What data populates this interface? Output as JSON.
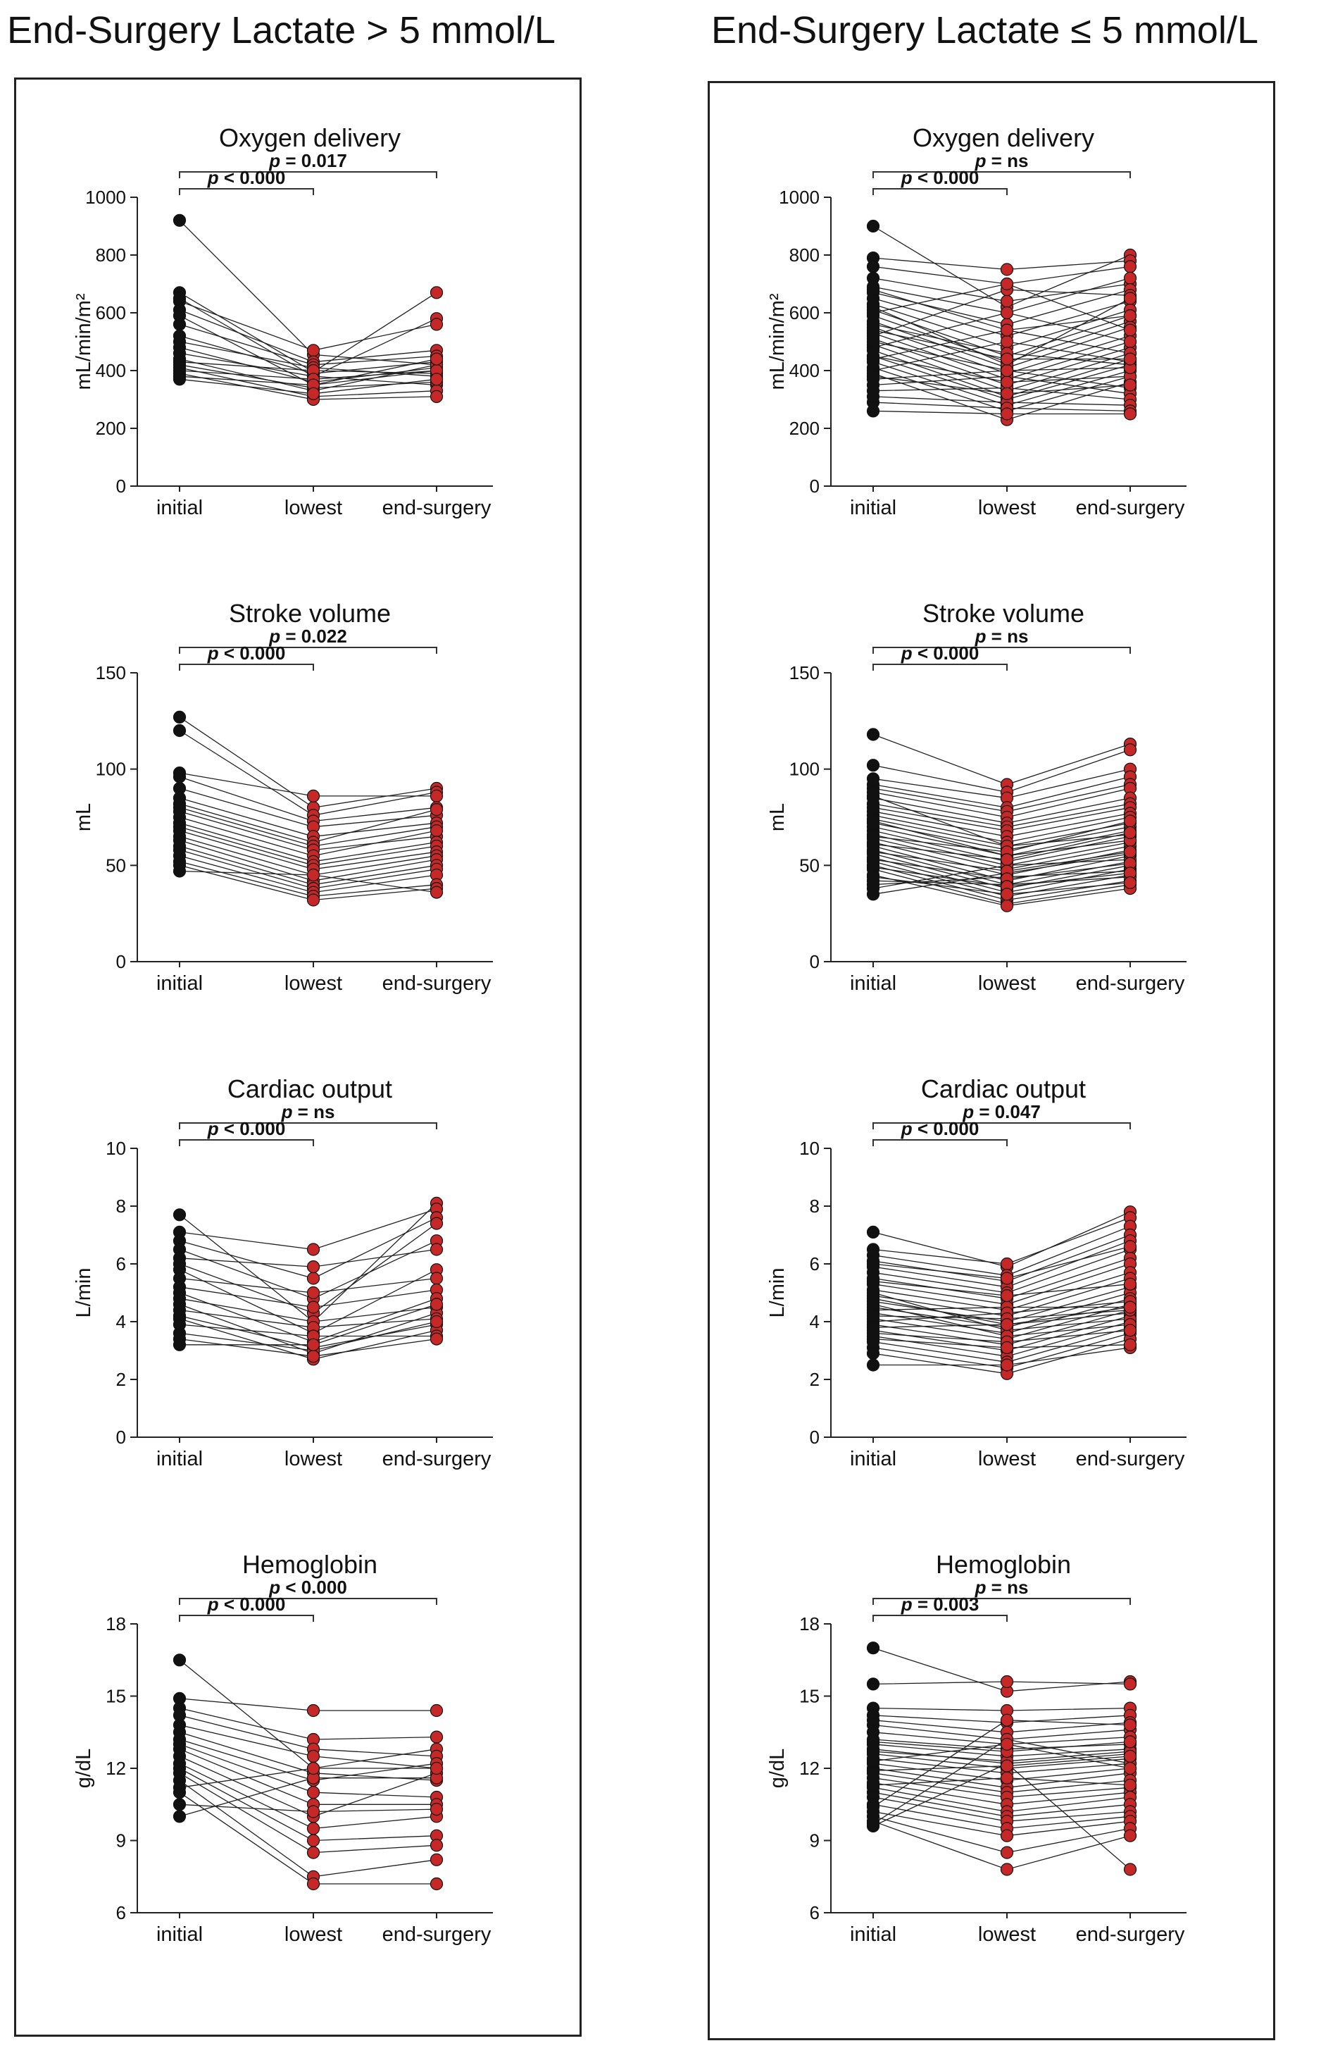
{
  "headers": {
    "left": "End-Surgery Lactate > 5 mmol/L",
    "right": "End-Surgery Lactate ≤ 5 mmol/L"
  },
  "colors": {
    "initial": "#111111",
    "later": "#c62828",
    "line": "#222222"
  },
  "chart_data": [
    {
      "type": "scatter",
      "group": "End-Surgery Lactate > 5 mmol/L",
      "title": "Oxygen delivery",
      "ylabel": "mL/min/m²",
      "categories": [
        "initial",
        "lowest",
        "end-surgery"
      ],
      "ylim": [
        0,
        1000
      ],
      "yticks": [
        0,
        200,
        400,
        600,
        800,
        1000
      ],
      "comparisons": [
        {
          "label": "p = 0.017",
          "p": "= 0.017",
          "from": 0,
          "to": 2
        },
        {
          "label": "p < 0.000",
          "p": "< 0.000",
          "from": 0,
          "to": 1
        }
      ],
      "series": [
        [
          920,
          455,
          420
        ],
        [
          670,
          395,
          670
        ],
        [
          650,
          380,
          580
        ],
        [
          640,
          470,
          560
        ],
        [
          610,
          430,
          470
        ],
        [
          590,
          350,
          400
        ],
        [
          560,
          420,
          450
        ],
        [
          520,
          390,
          430
        ],
        [
          500,
          410,
          380
        ],
        [
          480,
          360,
          410
        ],
        [
          460,
          380,
          350
        ],
        [
          440,
          330,
          420
        ],
        [
          430,
          400,
          390
        ],
        [
          420,
          340,
          360
        ],
        [
          410,
          310,
          330
        ],
        [
          400,
          370,
          400
        ],
        [
          390,
          300,
          310
        ],
        [
          380,
          350,
          440
        ],
        [
          370,
          320,
          370
        ]
      ]
    },
    {
      "type": "scatter",
      "group": "End-Surgery Lactate > 5 mmol/L",
      "title": "Stroke volume",
      "ylabel": "mL",
      "categories": [
        "initial",
        "lowest",
        "end-surgery"
      ],
      "ylim": [
        0,
        150
      ],
      "yticks": [
        0,
        50,
        100,
        150
      ],
      "comparisons": [
        {
          "label": "p = 0.022",
          "p": "= 0.022",
          "from": 0,
          "to": 2
        },
        {
          "label": "p < 0.000",
          "p": "< 0.000",
          "from": 0,
          "to": 1
        }
      ],
      "series": [
        [
          127,
          80,
          90
        ],
        [
          120,
          76,
          88
        ],
        [
          98,
          86,
          86
        ],
        [
          96,
          73,
          80
        ],
        [
          90,
          70,
          76
        ],
        [
          85,
          65,
          72
        ],
        [
          82,
          62,
          79
        ],
        [
          80,
          60,
          70
        ],
        [
          78,
          58,
          65
        ],
        [
          75,
          55,
          68
        ],
        [
          72,
          52,
          62
        ],
        [
          70,
          50,
          60
        ],
        [
          68,
          48,
          57
        ],
        [
          65,
          45,
          55
        ],
        [
          63,
          42,
          53
        ],
        [
          60,
          40,
          50
        ],
        [
          58,
          38,
          48
        ],
        [
          55,
          36,
          45
        ],
        [
          52,
          34,
          40
        ],
        [
          50,
          32,
          38
        ],
        [
          47,
          45,
          36
        ]
      ]
    },
    {
      "type": "scatter",
      "group": "End-Surgery Lactate > 5 mmol/L",
      "title": "Cardiac output",
      "ylabel": "L/min",
      "categories": [
        "initial",
        "lowest",
        "end-surgery"
      ],
      "ylim": [
        0,
        10
      ],
      "yticks": [
        0,
        2,
        4,
        6,
        8,
        10
      ],
      "comparisons": [
        {
          "label": "p = ns",
          "p": "= ns",
          "from": 0,
          "to": 2
        },
        {
          "label": "p < 0.000",
          "p": "< 0.000",
          "from": 0,
          "to": 1
        }
      ],
      "series": [
        [
          7.7,
          4.0,
          8.1
        ],
        [
          7.1,
          6.5,
          7.9
        ],
        [
          6.8,
          5.5,
          7.6
        ],
        [
          6.5,
          4.8,
          6.8
        ],
        [
          6.2,
          5.9,
          6.5
        ],
        [
          6.0,
          4.3,
          7.4
        ],
        [
          5.8,
          3.6,
          5.8
        ],
        [
          5.5,
          5.0,
          5.5
        ],
        [
          5.2,
          4.5,
          5.1
        ],
        [
          5.0,
          3.3,
          4.8
        ],
        [
          4.8,
          4.0,
          4.5
        ],
        [
          4.6,
          2.9,
          4.3
        ],
        [
          4.4,
          3.8,
          4.1
        ],
        [
          4.2,
          3.1,
          3.9
        ],
        [
          4.1,
          2.7,
          3.7
        ],
        [
          3.9,
          3.5,
          3.5
        ],
        [
          3.6,
          3.0,
          4.0
        ],
        [
          3.4,
          2.8,
          3.4
        ],
        [
          3.2,
          3.2,
          4.6
        ]
      ]
    },
    {
      "type": "scatter",
      "group": "End-Surgery Lactate > 5 mmol/L",
      "title": "Hemoglobin",
      "ylabel": "g/dL",
      "categories": [
        "initial",
        "lowest",
        "end-surgery"
      ],
      "ylim": [
        6,
        18
      ],
      "yticks": [
        6,
        9,
        12,
        15,
        18
      ],
      "comparisons": [
        {
          "label": "p < 0.000",
          "p": "< 0.000",
          "from": 0,
          "to": 2
        },
        {
          "label": "p < 0.000",
          "p": "< 0.000",
          "from": 0,
          "to": 1
        }
      ],
      "series": [
        [
          16.5,
          12.0,
          12.8
        ],
        [
          14.9,
          14.4,
          14.4
        ],
        [
          14.5,
          13.2,
          13.3
        ],
        [
          14.2,
          12.8,
          12.5
        ],
        [
          13.8,
          12.5,
          12.0
        ],
        [
          13.5,
          11.8,
          11.5
        ],
        [
          13.2,
          11.5,
          12.2
        ],
        [
          13.0,
          11.0,
          10.8
        ],
        [
          12.8,
          10.5,
          10.5
        ],
        [
          12.5,
          10.0,
          11.8
        ],
        [
          12.2,
          9.5,
          10.0
        ],
        [
          12.0,
          9.0,
          9.2
        ],
        [
          11.8,
          8.5,
          8.8
        ],
        [
          11.5,
          7.5,
          8.2
        ],
        [
          11.0,
          7.2,
          7.2
        ],
        [
          10.5,
          10.2,
          10.3
        ],
        [
          10.0,
          11.6,
          11.6
        ],
        [
          11.2,
          12.0,
          12.0
        ]
      ]
    },
    {
      "type": "scatter",
      "group": "End-Surgery Lactate ≤ 5 mmol/L",
      "title": "Oxygen delivery",
      "ylabel": "mL/min/m²",
      "categories": [
        "initial",
        "lowest",
        "end-surgery"
      ],
      "ylim": [
        0,
        1000
      ],
      "yticks": [
        0,
        200,
        400,
        600,
        800,
        1000
      ],
      "comparisons": [
        {
          "label": "p = ns",
          "p": "= ns",
          "from": 0,
          "to": 2
        },
        {
          "label": "p < 0.000",
          "p": "< 0.000",
          "from": 0,
          "to": 1
        }
      ],
      "series": [
        [
          900,
          620,
          800
        ],
        [
          790,
          750,
          780
        ],
        [
          760,
          700,
          760
        ],
        [
          720,
          640,
          700
        ],
        [
          690,
          600,
          720
        ],
        [
          670,
          560,
          680
        ],
        [
          650,
          520,
          640
        ],
        [
          630,
          480,
          610
        ],
        [
          610,
          450,
          590
        ],
        [
          590,
          430,
          570
        ],
        [
          570,
          410,
          550
        ],
        [
          550,
          390,
          520
        ],
        [
          530,
          370,
          500
        ],
        [
          510,
          350,
          480
        ],
        [
          490,
          330,
          460
        ],
        [
          470,
          310,
          440
        ],
        [
          450,
          300,
          420
        ],
        [
          430,
          280,
          400
        ],
        [
          410,
          260,
          380
        ],
        [
          390,
          230,
          360
        ],
        [
          370,
          400,
          340
        ],
        [
          350,
          380,
          320
        ],
        [
          330,
          340,
          300
        ],
        [
          310,
          290,
          280
        ],
        [
          290,
          270,
          260
        ],
        [
          260,
          250,
          250
        ],
        [
          520,
          680,
          660
        ],
        [
          600,
          700,
          540
        ],
        [
          480,
          600,
          500
        ],
        [
          440,
          540,
          460
        ],
        [
          400,
          500,
          430
        ],
        [
          560,
          460,
          420
        ],
        [
          620,
          420,
          650
        ],
        [
          680,
          540,
          590
        ],
        [
          450,
          360,
          380
        ],
        [
          380,
          320,
          350
        ],
        [
          500,
          400,
          410
        ],
        [
          540,
          440,
          440
        ]
      ]
    },
    {
      "type": "scatter",
      "group": "End-Surgery Lactate ≤ 5 mmol/L",
      "title": "Stroke volume",
      "ylabel": "mL",
      "categories": [
        "initial",
        "lowest",
        "end-surgery"
      ],
      "ylim": [
        0,
        150
      ],
      "yticks": [
        0,
        50,
        100,
        150
      ],
      "comparisons": [
        {
          "label": "p = ns",
          "p": "= ns",
          "from": 0,
          "to": 2
        },
        {
          "label": "p < 0.000",
          "p": "< 0.000",
          "from": 0,
          "to": 1
        }
      ],
      "series": [
        [
          118,
          92,
          113
        ],
        [
          102,
          88,
          110
        ],
        [
          95,
          85,
          100
        ],
        [
          92,
          80,
          96
        ],
        [
          90,
          78,
          92
        ],
        [
          88,
          75,
          90
        ],
        [
          85,
          72,
          85
        ],
        [
          82,
          70,
          82
        ],
        [
          80,
          68,
          80
        ],
        [
          78,
          65,
          77
        ],
        [
          76,
          62,
          75
        ],
        [
          74,
          60,
          72
        ],
        [
          72,
          58,
          70
        ],
        [
          70,
          55,
          68
        ],
        [
          68,
          52,
          65
        ],
        [
          66,
          50,
          62
        ],
        [
          64,
          48,
          60
        ],
        [
          62,
          45,
          58
        ],
        [
          60,
          42,
          55
        ],
        [
          58,
          40,
          52
        ],
        [
          56,
          38,
          50
        ],
        [
          54,
          36,
          48
        ],
        [
          52,
          34,
          45
        ],
        [
          50,
          32,
          42
        ],
        [
          48,
          30,
          40
        ],
        [
          45,
          29,
          38
        ],
        [
          42,
          40,
          44
        ],
        [
          40,
          44,
          47
        ],
        [
          38,
          50,
          53
        ],
        [
          35,
          46,
          56
        ],
        [
          86,
          60,
          66
        ],
        [
          73,
          55,
          63
        ],
        [
          65,
          57,
          73
        ],
        [
          61,
          53,
          67
        ],
        [
          57,
          47,
          57
        ],
        [
          53,
          43,
          51
        ],
        [
          49,
          39,
          46
        ],
        [
          44,
          35,
          41
        ]
      ]
    },
    {
      "type": "scatter",
      "group": "End-Surgery Lactate ≤ 5 mmol/L",
      "title": "Cardiac output",
      "ylabel": "L/min",
      "categories": [
        "initial",
        "lowest",
        "end-surgery"
      ],
      "ylim": [
        0,
        10
      ],
      "yticks": [
        0,
        2,
        4,
        6,
        8,
        10
      ],
      "comparisons": [
        {
          "label": "p = 0.047",
          "p": "= 0.047",
          "from": 0,
          "to": 2
        },
        {
          "label": "p < 0.000",
          "p": "< 0.000",
          "from": 0,
          "to": 1
        }
      ],
      "series": [
        [
          7.1,
          5.9,
          7.8
        ],
        [
          6.5,
          6.0,
          7.6
        ],
        [
          6.3,
          5.6,
          7.3
        ],
        [
          6.1,
          5.4,
          7.0
        ],
        [
          5.9,
          5.2,
          6.8
        ],
        [
          5.7,
          5.0,
          6.5
        ],
        [
          5.5,
          4.8,
          6.2
        ],
        [
          5.3,
          4.6,
          6.0
        ],
        [
          5.1,
          4.4,
          5.7
        ],
        [
          4.9,
          4.2,
          5.5
        ],
        [
          4.7,
          4.0,
          5.2
        ],
        [
          4.5,
          3.8,
          5.0
        ],
        [
          4.3,
          3.6,
          4.8
        ],
        [
          4.1,
          3.4,
          4.6
        ],
        [
          3.9,
          3.2,
          4.4
        ],
        [
          3.7,
          3.0,
          4.2
        ],
        [
          3.5,
          2.8,
          4.0
        ],
        [
          3.3,
          2.6,
          3.8
        ],
        [
          3.1,
          2.4,
          3.6
        ],
        [
          2.9,
          2.2,
          3.4
        ],
        [
          2.5,
          2.5,
          3.1
        ],
        [
          4.4,
          4.5,
          4.5
        ],
        [
          4.0,
          4.3,
          4.7
        ],
        [
          3.8,
          3.9,
          4.3
        ],
        [
          5.0,
          3.7,
          4.1
        ],
        [
          4.6,
          3.5,
          3.9
        ],
        [
          4.2,
          4.1,
          4.4
        ],
        [
          3.6,
          3.3,
          3.7
        ],
        [
          5.4,
          4.9,
          5.3
        ],
        [
          6.0,
          5.5,
          6.6
        ],
        [
          3.4,
          3.1,
          3.2
        ],
        [
          4.8,
          3.9,
          4.5
        ]
      ]
    },
    {
      "type": "scatter",
      "group": "End-Surgery Lactate ≤ 5 mmol/L",
      "title": "Hemoglobin",
      "ylabel": "g/dL",
      "categories": [
        "initial",
        "lowest",
        "end-surgery"
      ],
      "ylim": [
        6,
        18
      ],
      "yticks": [
        6,
        9,
        12,
        15,
        18
      ],
      "comparisons": [
        {
          "label": "p = ns",
          "p": "= ns",
          "from": 0,
          "to": 2
        },
        {
          "label": "p = 0.003",
          "p": "= 0.003",
          "from": 0,
          "to": 1
        }
      ],
      "series": [
        [
          17.0,
          15.2,
          15.6
        ],
        [
          15.5,
          15.6,
          15.5
        ],
        [
          14.5,
          14.4,
          14.5
        ],
        [
          14.2,
          13.9,
          14.2
        ],
        [
          14.0,
          13.5,
          13.9
        ],
        [
          13.8,
          13.2,
          13.6
        ],
        [
          13.5,
          13.0,
          13.3
        ],
        [
          13.2,
          12.8,
          13.0
        ],
        [
          13.0,
          12.5,
          12.8
        ],
        [
          12.8,
          12.2,
          12.6
        ],
        [
          12.6,
          12.0,
          12.4
        ],
        [
          12.4,
          11.8,
          12.2
        ],
        [
          12.2,
          11.5,
          12.0
        ],
        [
          12.0,
          11.2,
          11.8
        ],
        [
          11.8,
          11.0,
          11.5
        ],
        [
          11.6,
          10.8,
          11.2
        ],
        [
          11.4,
          10.5,
          11.0
        ],
        [
          11.2,
          10.2,
          10.8
        ],
        [
          11.0,
          10.0,
          10.5
        ],
        [
          10.8,
          9.8,
          10.2
        ],
        [
          10.5,
          9.5,
          10.0
        ],
        [
          10.2,
          9.2,
          9.8
        ],
        [
          10.0,
          8.5,
          9.5
        ],
        [
          9.8,
          7.8,
          9.2
        ],
        [
          9.6,
          12.2,
          7.8
        ],
        [
          9.7,
          13.2,
          12.2
        ],
        [
          10.4,
          14.0,
          13.8
        ],
        [
          12.7,
          12.3,
          12.7
        ],
        [
          13.1,
          12.7,
          13.1
        ],
        [
          11.9,
          12.1,
          12.5
        ],
        [
          11.3,
          11.6,
          11.3
        ],
        [
          12.3,
          13.0,
          12.0
        ]
      ]
    }
  ]
}
